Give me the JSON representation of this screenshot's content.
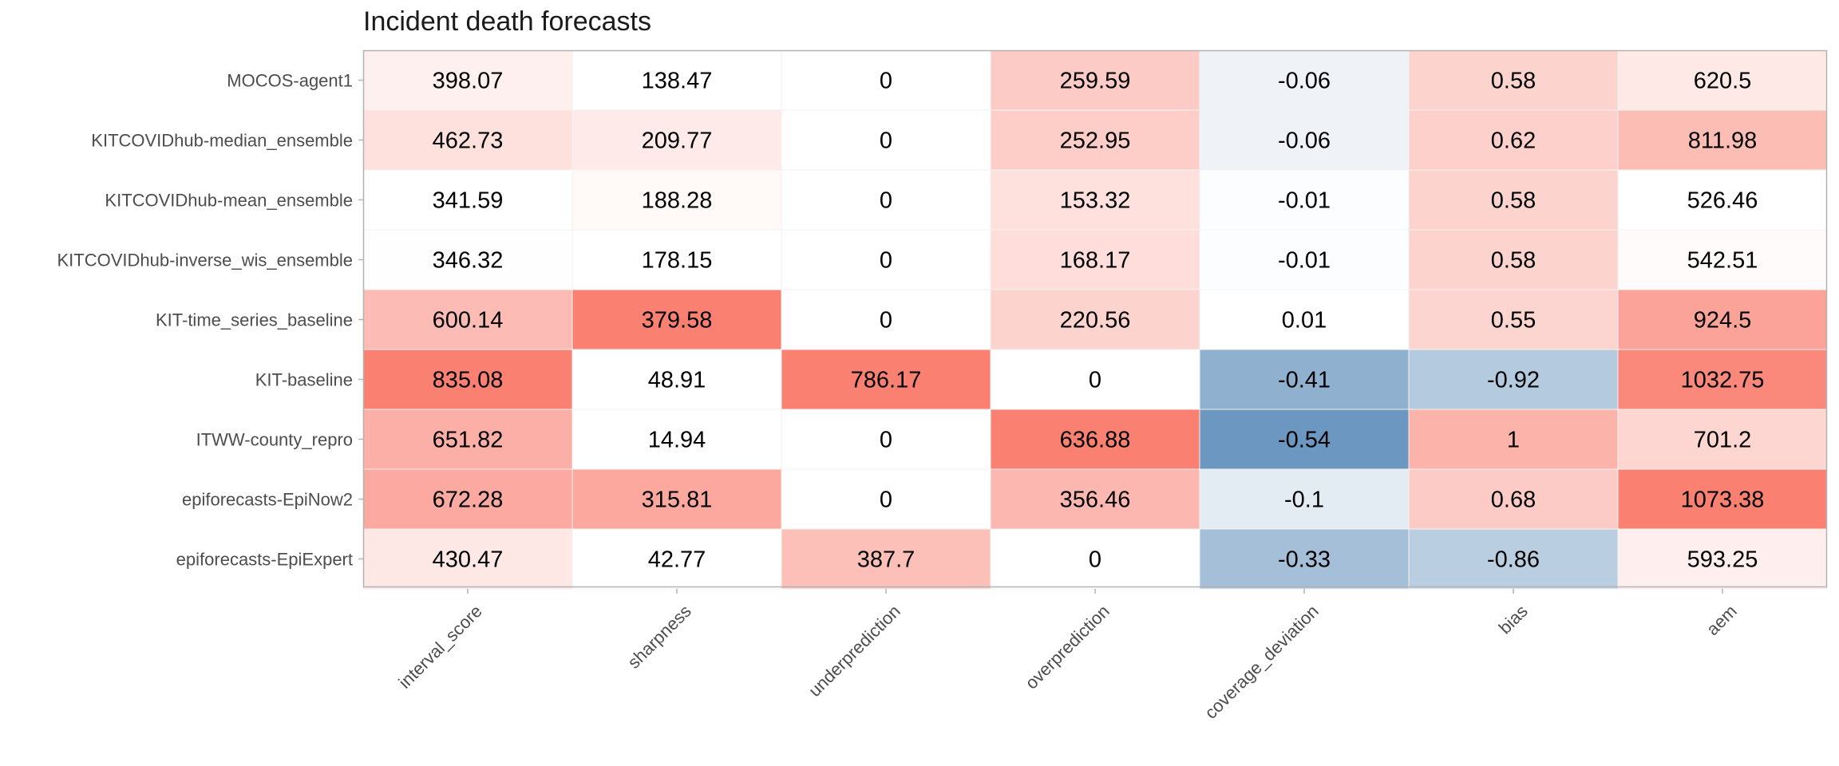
{
  "chart_data": {
    "type": "heatmap",
    "title": "Incident death forecasts",
    "xlabel": "",
    "ylabel": "",
    "columns": [
      "interval_score",
      "sharpness",
      "underprediction",
      "overprediction",
      "coverage_deviation",
      "bias",
      "aem"
    ],
    "rows": [
      "MOCOS-agent1",
      "KITCOVIDhub-median_ensemble",
      "KITCOVIDhub-mean_ensemble",
      "KITCOVIDhub-inverse_wis_ensemble",
      "KIT-time_series_baseline",
      "KIT-baseline",
      "ITWW-county_repro",
      "epiforecasts-EpiNow2",
      "epiforecasts-EpiExpert"
    ],
    "values": [
      [
        "398.07",
        "138.47",
        "0",
        "259.59",
        "-0.06",
        "0.58",
        "620.5"
      ],
      [
        "462.73",
        "209.77",
        "0",
        "252.95",
        "-0.06",
        "0.62",
        "811.98"
      ],
      [
        "341.59",
        "188.28",
        "0",
        "153.32",
        "-0.01",
        "0.58",
        "526.46"
      ],
      [
        "346.32",
        "178.15",
        "0",
        "168.17",
        "-0.01",
        "0.58",
        "542.51"
      ],
      [
        "600.14",
        "379.58",
        "0",
        "220.56",
        "0.01",
        "0.55",
        "924.5"
      ],
      [
        "835.08",
        "48.91",
        "786.17",
        "0",
        "-0.41",
        "-0.92",
        "1032.75"
      ],
      [
        "651.82",
        "14.94",
        "0",
        "636.88",
        "-0.54",
        "1",
        "701.2"
      ],
      [
        "672.28",
        "315.81",
        "0",
        "356.46",
        "-0.1",
        "0.68",
        "1073.38"
      ],
      [
        "430.47",
        "42.77",
        "387.7",
        "0",
        "-0.33",
        "-0.86",
        "593.25"
      ]
    ],
    "colors": {
      "positive": "#fa8072",
      "negative": "#6b97c0",
      "neutral": "#ffffff",
      "panel_border": "#b3b3b3",
      "cell_border": "#f2f2f2"
    },
    "grid": false,
    "legend": "none"
  }
}
